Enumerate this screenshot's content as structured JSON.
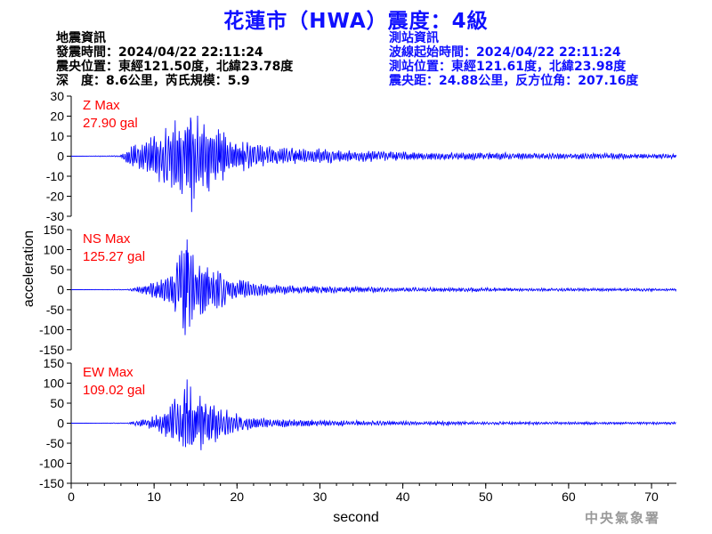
{
  "header": {
    "title": "花蓮市（HWA）震度：4級",
    "quake": {
      "heading": "地震資訊",
      "time": "發震時間：2024/04/22 22:11:24",
      "epicenter": "震央位置：東經121.50度，北緯23.78度",
      "depth_mag": "深　度：8.6公里，芮氏規模：5.9"
    },
    "station": {
      "heading": "測站資訊",
      "wave_start": "波線起始時間：2024/04/22 22:11:24",
      "location": "測站位置：東經121.61度，北緯23.98度",
      "distance": "震央距：24.88公里，反方位角：207.16度"
    }
  },
  "footer": {
    "agency": "中央氣象署"
  },
  "colors": {
    "trace": "#0000ff",
    "label": "#ff0000",
    "title": "#1010ff",
    "axis": "#000000"
  },
  "chart_data": {
    "type": "line",
    "xlabel": "second",
    "ylabel": "acceleration",
    "xlim": [
      0,
      73
    ],
    "x_ticks": [
      0,
      10,
      20,
      30,
      40,
      50,
      60,
      70
    ],
    "panels": [
      {
        "name": "Z Max",
        "max_label": "27.90 gal",
        "ylim": [
          -30,
          30
        ],
        "y_ticks": [
          30,
          20,
          10,
          0,
          -10,
          -20,
          -30
        ],
        "t": [
          0,
          5.8,
          6.5,
          7,
          7.5,
          8,
          8.5,
          9,
          9.5,
          10,
          10.5,
          11,
          11.5,
          12,
          12.5,
          13,
          13.5,
          14,
          14.5,
          15,
          15.5,
          16,
          16.5,
          17,
          17.5,
          18,
          18.5,
          19,
          19.5,
          20,
          21,
          22,
          23,
          24,
          25,
          26,
          27,
          28,
          29,
          30,
          32,
          34,
          36,
          38,
          40,
          43,
          46,
          50,
          55,
          60,
          65,
          70,
          73
        ],
        "envelope": [
          0,
          0.3,
          3,
          4,
          6,
          7,
          8,
          9,
          11,
          13,
          14,
          16,
          18,
          19,
          20,
          22,
          21,
          24,
          27.9,
          24,
          20,
          21,
          18,
          17,
          15,
          14,
          13,
          11,
          10,
          9,
          8,
          7,
          6,
          6,
          5,
          5,
          4.5,
          4,
          4,
          4,
          3.5,
          3,
          3,
          2.5,
          2.5,
          2,
          2,
          2,
          1.5,
          1.5,
          1.5,
          1.2,
          1.2
        ]
      },
      {
        "name": "NS Max",
        "max_label": "125.27 gal",
        "ylim": [
          -150,
          150
        ],
        "y_ticks": [
          150,
          100,
          50,
          0,
          -50,
          -100,
          -150
        ],
        "t": [
          0,
          6.8,
          7.5,
          8,
          8.5,
          9,
          9.5,
          10,
          10.5,
          11,
          11.5,
          12,
          12.5,
          13,
          13.5,
          14,
          14.5,
          15,
          15.5,
          16,
          16.5,
          17,
          17.5,
          18,
          18.5,
          19,
          20,
          21,
          22,
          23,
          24,
          26,
          28,
          30,
          33,
          36,
          40,
          45,
          50,
          55,
          60,
          65,
          70,
          73
        ],
        "envelope": [
          0,
          1,
          6,
          8,
          10,
          14,
          18,
          22,
          28,
          34,
          42,
          55,
          75,
          95,
          110,
          125.27,
          110,
          100,
          90,
          80,
          70,
          62,
          55,
          48,
          42,
          36,
          30,
          24,
          20,
          16,
          14,
          12,
          10,
          9,
          8,
          7,
          6,
          5,
          5,
          4,
          4,
          4,
          3.5,
          3.5
        ]
      },
      {
        "name": "EW Max",
        "max_label": "109.02 gal",
        "ylim": [
          -150,
          150
        ],
        "y_ticks": [
          150,
          100,
          50,
          0,
          -50,
          -100,
          -150
        ],
        "t": [
          0,
          6.8,
          7.5,
          8,
          8.5,
          9,
          9.5,
          10,
          10.5,
          11,
          11.5,
          12,
          12.5,
          13,
          13.5,
          14,
          14.5,
          15,
          15.5,
          16,
          16.5,
          17,
          17.5,
          18,
          18.5,
          19,
          20,
          21,
          22,
          23,
          24,
          26,
          28,
          30,
          33,
          36,
          40,
          45,
          50,
          55,
          60,
          65,
          70,
          73
        ],
        "envelope": [
          0,
          1,
          5,
          7,
          9,
          12,
          16,
          20,
          25,
          30,
          38,
          50,
          65,
          80,
          95,
          109.02,
          100,
          85,
          78,
          70,
          62,
          55,
          48,
          42,
          36,
          32,
          26,
          20,
          17,
          14,
          12,
          10,
          9,
          8,
          7,
          6,
          5,
          5,
          4,
          4,
          4,
          3.5,
          3.5,
          3.5
        ]
      }
    ]
  }
}
